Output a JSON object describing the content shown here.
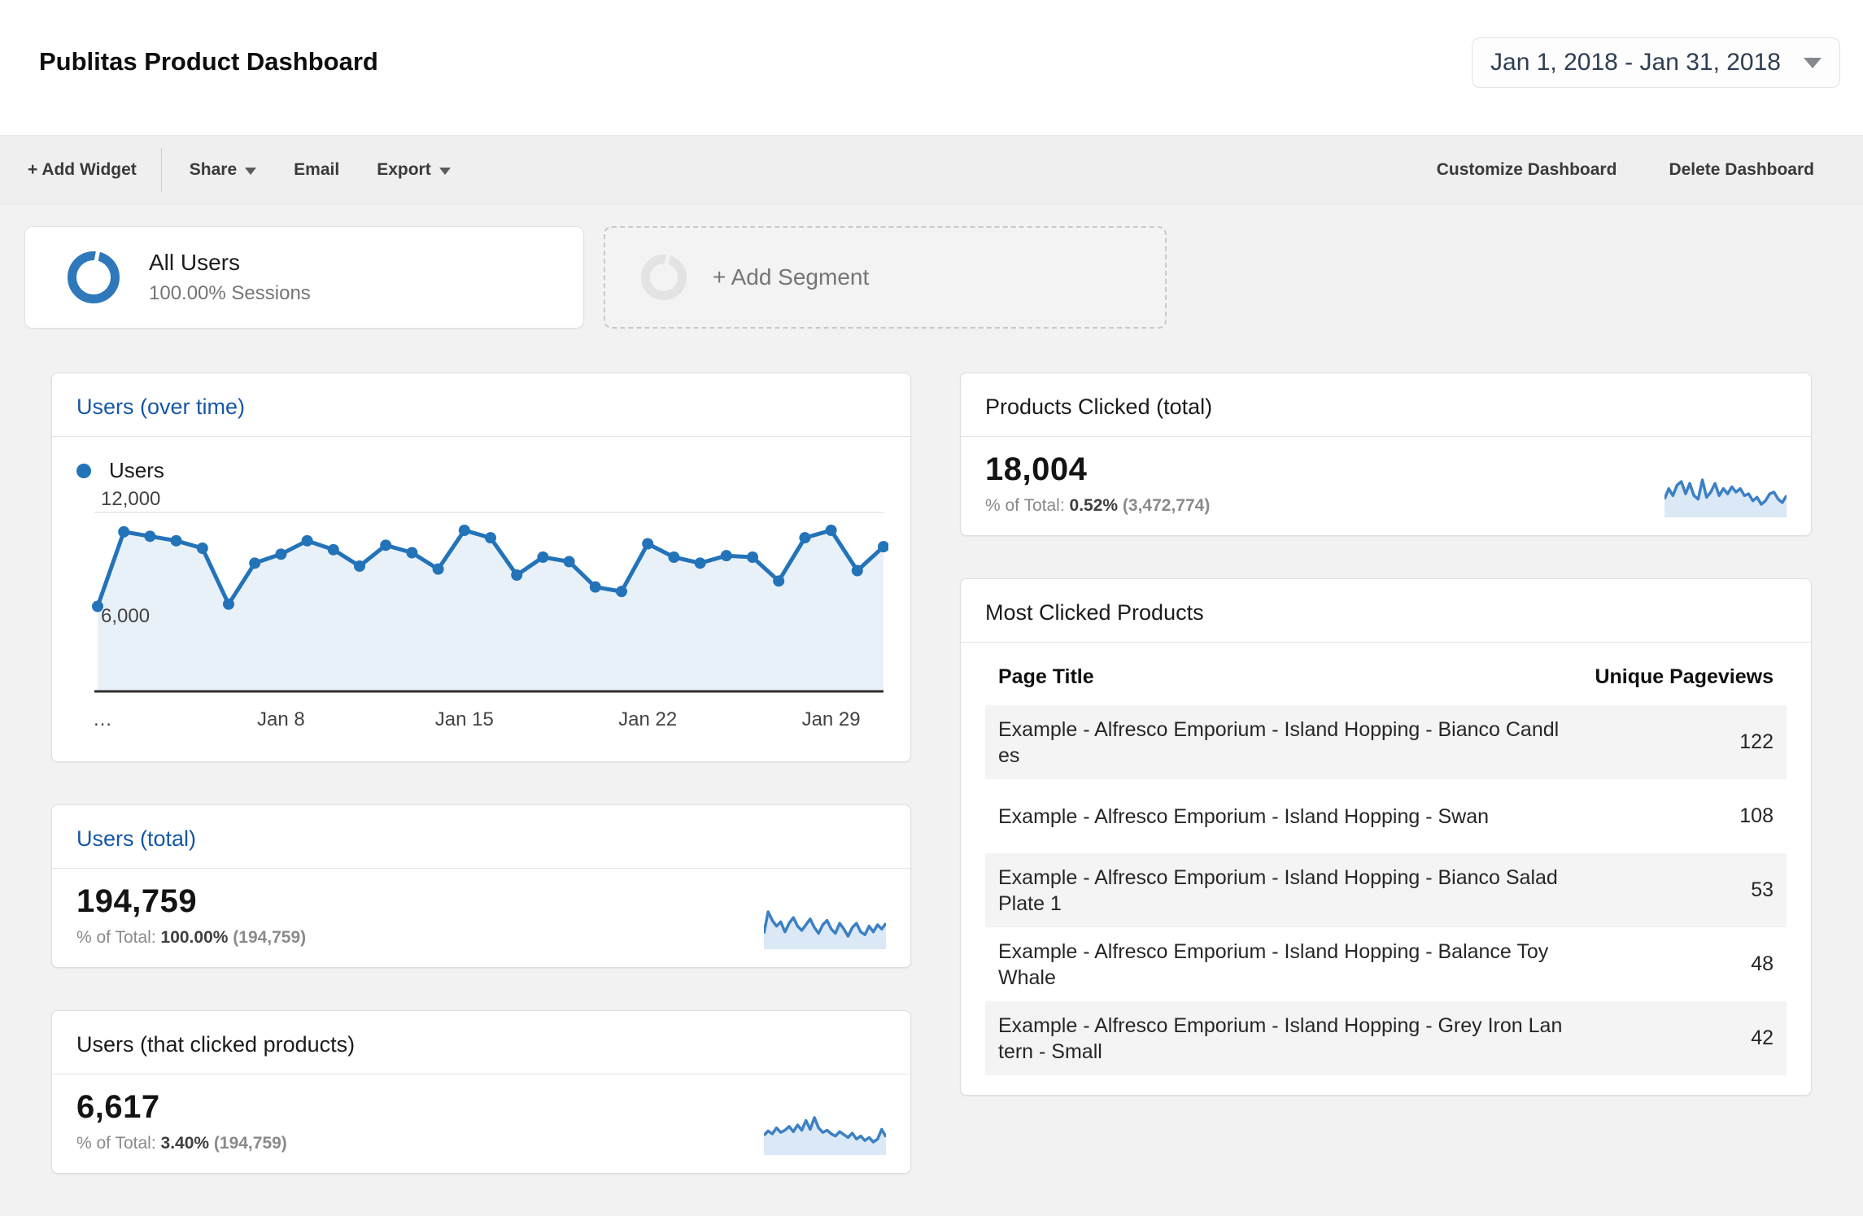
{
  "header": {
    "title": "Publitas Product Dashboard",
    "date_range": "Jan 1, 2018 - Jan 31, 2018"
  },
  "toolbar": {
    "add_widget": "+ Add Widget",
    "share": "Share",
    "email": "Email",
    "export": "Export",
    "customize": "Customize Dashboard",
    "delete": "Delete Dashboard"
  },
  "segments": {
    "all_users": {
      "name": "All Users",
      "detail": "100.00% Sessions"
    },
    "add_segment": {
      "label": "+ Add Segment"
    }
  },
  "widgets": {
    "users_over_time": {
      "title": "Users (over time)",
      "legend": "Users"
    },
    "users_total": {
      "title": "Users (total)",
      "value": "194,759",
      "pct_label": "% of Total:",
      "pct": "100.00%",
      "base": "(194,759)"
    },
    "users_clicked": {
      "title": "Users (that clicked products)",
      "value": "6,617",
      "pct_label": "% of Total:",
      "pct": "3.40%",
      "base": "(194,759)"
    },
    "products_clicked": {
      "title": "Products Clicked (total)",
      "value": "18,004",
      "pct_label": "% of Total:",
      "pct": "0.52%",
      "base": "(3,472,774)"
    },
    "most_clicked": {
      "title": "Most Clicked Products",
      "col_title": "Page Title",
      "col_value": "Unique Pageviews",
      "rows": [
        {
          "title": "Example - Alfresco Emporium - Island Hopping - Bianco Candles",
          "value": "122"
        },
        {
          "title": "Example - Alfresco Emporium - Island Hopping - Swan",
          "value": "108"
        },
        {
          "title": "Example - Alfresco Emporium - Island Hopping - Bianco Salad Plate 1",
          "value": "53"
        },
        {
          "title": "Example - Alfresco Emporium - Island Hopping - Balance Toy Whale",
          "value": "48"
        },
        {
          "title": "Example - Alfresco Emporium - Island Hopping - Grey Iron Lantern - Small",
          "value": "42"
        }
      ]
    }
  },
  "colors": {
    "accent_blue": "#2373b9",
    "title_blue": "#1657a7",
    "area_fill": "#e9f1f8",
    "spark_line": "#3c80c3",
    "spark_fill": "#dbe8f6",
    "gridline": "#e5e5e5",
    "axis": "#2f2f2f",
    "axis_label": "#434343"
  },
  "chart_data": [
    {
      "type": "line",
      "name": "users-over-time",
      "title": "Users (over time)",
      "legend": "Users",
      "x": [
        "Jan 1",
        "Jan 2",
        "Jan 3",
        "Jan 4",
        "Jan 5",
        "Jan 6",
        "Jan 7",
        "Jan 8",
        "Jan 9",
        "Jan 10",
        "Jan 11",
        "Jan 12",
        "Jan 13",
        "Jan 14",
        "Jan 15",
        "Jan 16",
        "Jan 17",
        "Jan 18",
        "Jan 19",
        "Jan 20",
        "Jan 21",
        "Jan 22",
        "Jan 23",
        "Jan 24",
        "Jan 25",
        "Jan 26",
        "Jan 27",
        "Jan 28",
        "Jan 29",
        "Jan 30",
        "Jan 31"
      ],
      "series": [
        {
          "name": "Users",
          "values": [
            5700,
            10700,
            10400,
            10100,
            9600,
            5850,
            8600,
            9200,
            10100,
            9500,
            8400,
            9800,
            9300,
            8200,
            10800,
            10300,
            7800,
            9000,
            8700,
            7000,
            6700,
            9900,
            9000,
            8600,
            9100,
            9000,
            7400,
            10300,
            10800,
            8100,
            9700
          ]
        }
      ],
      "ylim": [
        0,
        12400
      ],
      "y_gridlines": [
        6000,
        12000
      ],
      "y_tick_labels": [
        "6,000",
        "12,000"
      ],
      "x_tick_days": [
        1,
        8,
        15,
        22,
        29
      ],
      "x_tick_labels": [
        "…",
        "Jan 8",
        "Jan 15",
        "Jan 22",
        "Jan 29"
      ],
      "grid": "horizontal-only",
      "legend_position": "top-left"
    },
    {
      "type": "area",
      "name": "users-total-sparkline",
      "values": [
        5.5,
        7.0,
        6.4,
        6.0,
        6.3,
        5.6,
        6.2,
        6.6,
        6.0,
        5.7,
        6.1,
        6.5,
        5.9,
        5.5,
        6.1,
        6.4,
        5.8,
        5.5,
        6.2,
        5.8,
        5.3,
        5.9,
        6.2,
        5.6,
        5.4,
        6.0,
        5.6,
        6.1,
        5.8,
        6.2
      ]
    },
    {
      "type": "area",
      "name": "users-clicked-sparkline",
      "values": [
        5.2,
        5.8,
        5.4,
        6.2,
        5.6,
        5.9,
        6.4,
        5.7,
        6.6,
        5.9,
        7.2,
        6.0,
        7.6,
        6.2,
        5.6,
        5.9,
        5.4,
        5.1,
        5.7,
        5.3,
        4.9,
        5.5,
        4.7,
        5.1,
        4.5,
        4.9,
        4.3,
        4.7,
        6.0,
        5.0
      ]
    },
    {
      "type": "area",
      "name": "products-clicked-sparkline",
      "values": [
        4.8,
        6.0,
        5.2,
        6.4,
        6.8,
        5.4,
        6.6,
        5.2,
        4.8,
        7.0,
        5.0,
        5.6,
        6.6,
        5.2,
        6.0,
        5.4,
        6.2,
        5.6,
        6.0,
        5.2,
        5.4,
        4.6,
        5.0,
        4.2,
        4.6,
        5.4,
        5.6,
        4.8,
        4.4,
        5.2
      ]
    }
  ]
}
